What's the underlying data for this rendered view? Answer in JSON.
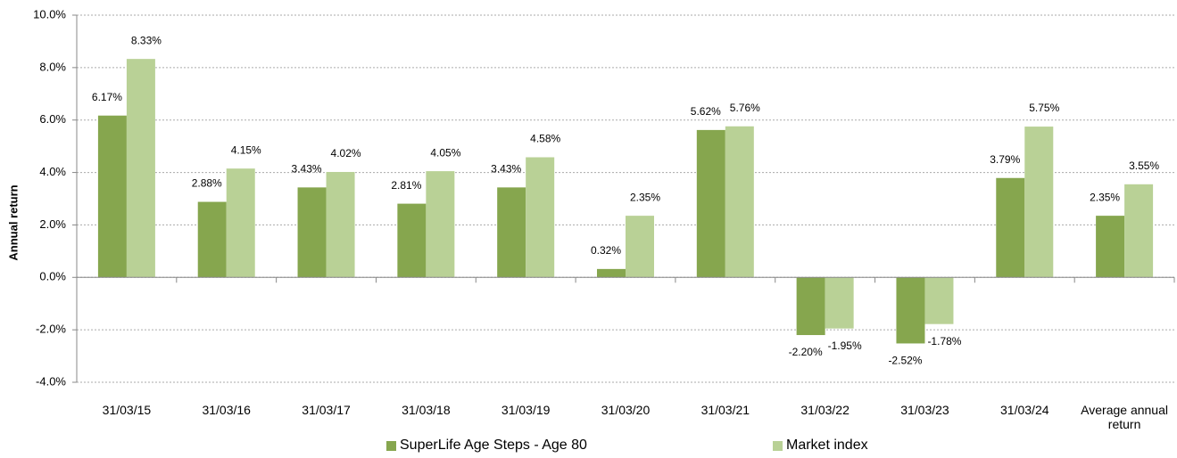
{
  "chart_data": {
    "type": "bar",
    "y_label": "Annual return",
    "categories": [
      "31/03/15",
      "31/03/16",
      "31/03/17",
      "31/03/18",
      "31/03/19",
      "31/03/20",
      "31/03/21",
      "31/03/22",
      "31/03/23",
      "31/03/24",
      "Average annual return"
    ],
    "series": [
      {
        "name": "SuperLife Age Steps - Age 80",
        "color": "#86a64e",
        "values": [
          6.17,
          2.88,
          3.43,
          2.81,
          3.43,
          0.32,
          5.62,
          -2.2,
          -2.52,
          3.79,
          2.35
        ],
        "value_labels": [
          "6.17%",
          "2.88%",
          "3.43%",
          "2.81%",
          "3.43%",
          "0.32%",
          "5.62%",
          "-2.20%",
          "-2.52%",
          "3.79%",
          "2.35%"
        ]
      },
      {
        "name": "Market index",
        "color": "#b9d196",
        "values": [
          8.33,
          4.15,
          4.02,
          4.05,
          4.58,
          2.35,
          5.76,
          -1.95,
          -1.78,
          5.75,
          3.55
        ],
        "value_labels": [
          "8.33%",
          "4.15%",
          "4.02%",
          "4.05%",
          "4.58%",
          "2.35%",
          "5.76%",
          "-1.95%",
          "-1.78%",
          "5.75%",
          "3.55%"
        ]
      }
    ],
    "ylim": [
      -4,
      10
    ],
    "yticks": [
      {
        "value": -4,
        "label": "-4.0%"
      },
      {
        "value": -2,
        "label": "-2.0%"
      },
      {
        "value": 0,
        "label": "0.0%"
      },
      {
        "value": 2,
        "label": "2.0%"
      },
      {
        "value": 4,
        "label": "4.0%"
      },
      {
        "value": 6,
        "label": "6.0%"
      },
      {
        "value": 8,
        "label": "8.0%"
      },
      {
        "value": 10,
        "label": "10.0%"
      }
    ],
    "grid": true,
    "legend": "bottom"
  }
}
